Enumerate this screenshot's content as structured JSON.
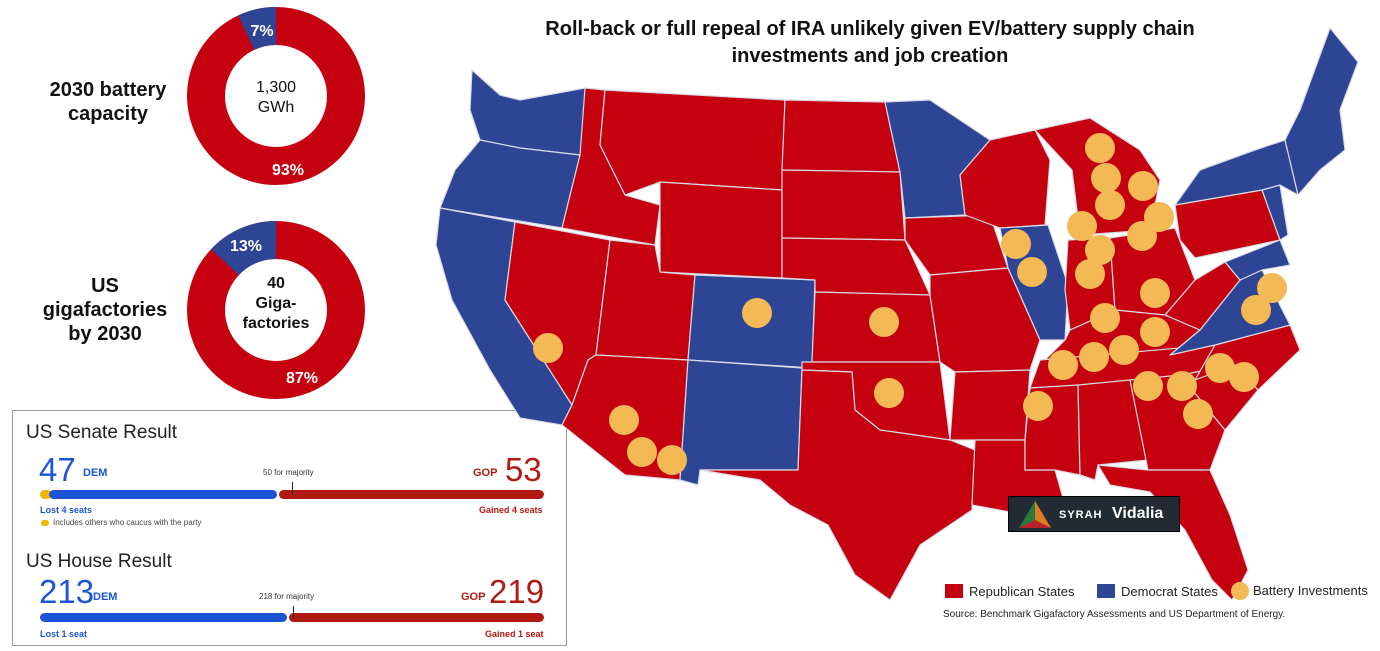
{
  "title": "Roll-back or full repeal of IRA unlikely given EV/battery supply chain investments and job creation",
  "donuts": [
    {
      "label": "2030 battery capacity",
      "center": "1,300\nGWh",
      "center_lines": [
        "1,300",
        "GWh"
      ],
      "dem_pct": 7,
      "gop_pct": 93,
      "dem_label": "7%",
      "gop_label": "93%"
    },
    {
      "label": "US gigafactories by 2030",
      "label_lines": [
        "US",
        "gigafactories",
        "by 2030"
      ],
      "center_lines": [
        "40",
        "Giga-",
        "factories"
      ],
      "dem_pct": 13,
      "gop_pct": 87,
      "dem_label": "13%",
      "gop_label": "87%"
    }
  ],
  "senate": {
    "title": "US Senate Result",
    "dem_count": "47",
    "dem_tag": "DEM",
    "gop_tag": "GOP",
    "gop_count": "53",
    "majority": "50 for majority",
    "dem_note": "Lost 4 seats",
    "gop_note": "Gained 4 seats",
    "caucus_note": "Includes others who caucus with the party",
    "dem_seats": 47,
    "gop_seats": 53,
    "others_seats": 2,
    "majority_seats": 50
  },
  "house": {
    "title": "US House Result",
    "dem_count": "213",
    "dem_tag": "DEM",
    "gop_tag": "GOP",
    "gop_count": "219",
    "majority": "218 for majority",
    "dem_note": "Lost 1 seat",
    "gop_note": "Gained 1 seat",
    "dem_seats": 213,
    "gop_seats": 219,
    "majority_seats": 218
  },
  "legend": {
    "republican": "Republican States",
    "democrat": "Democrat States",
    "battery": "Battery Investments"
  },
  "source": "Source: Benchmark Gigafactory Assessments and US Department of Energy.",
  "badge": {
    "syrah": "SYRAH",
    "vidalia": "Vidalia"
  },
  "colors": {
    "republican": "#c5000f",
    "democrat": "#2e4596",
    "battery": "#f3b955",
    "dem_bar": "#1b55d6",
    "gop_bar": "#b01a12"
  }
}
